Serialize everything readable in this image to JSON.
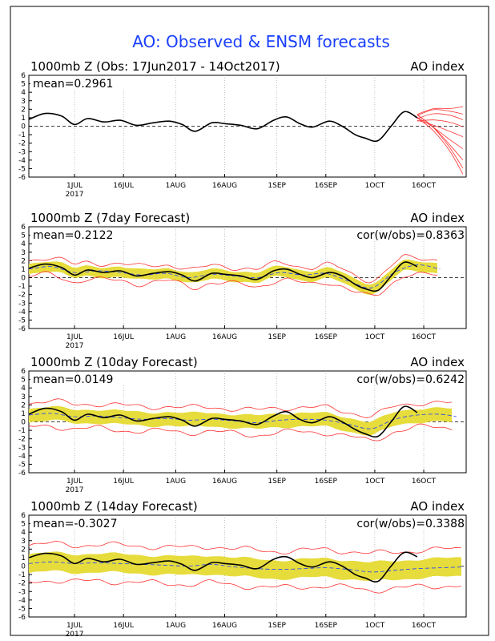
{
  "main_title": "AO: Observed & ENSM forecasts",
  "colors": {
    "title": "#1a3fff",
    "observed": "#000000",
    "forecast_members": "#ff3333",
    "ensemble_spread": "#e6dc3c",
    "ensemble_mean": "#1a3fff",
    "grid": "#999999"
  },
  "chart_data": [
    {
      "type": "line",
      "title_left": "1000mb Z (Obs: 17Jun2017 - 14Oct2017)",
      "title_right": "AO index",
      "stat_left": "mean=0.2961",
      "stat_right": "",
      "y_ticks": [
        "-6",
        "-5",
        "-4",
        "-3",
        "-2",
        "-1",
        "0",
        "1",
        "2",
        "3",
        "4",
        "5",
        "6"
      ],
      "ylim": [
        -6,
        6
      ],
      "x_ticks": [
        "1JUL",
        "16JUL",
        "1AUG",
        "16AUG",
        "1SEP",
        "16SEP",
        "1OCT",
        "16OCT"
      ],
      "x_year": "2017",
      "series": [
        {
          "role": "observed",
          "x": [
            "2017-06-17",
            "2017-06-22",
            "2017-06-27",
            "2017-07-01",
            "2017-07-05",
            "2017-07-10",
            "2017-07-15",
            "2017-07-20",
            "2017-07-25",
            "2017-07-30",
            "2017-08-03",
            "2017-08-07",
            "2017-08-12",
            "2017-08-16",
            "2017-08-21",
            "2017-08-26",
            "2017-08-31",
            "2017-09-04",
            "2017-09-08",
            "2017-09-12",
            "2017-09-17",
            "2017-09-21",
            "2017-09-25",
            "2017-09-28",
            "2017-10-02",
            "2017-10-06",
            "2017-10-10",
            "2017-10-14"
          ],
          "values": [
            0.8,
            1.5,
            1.2,
            0.2,
            0.9,
            0.5,
            0.7,
            0.1,
            0.4,
            0.6,
            0.2,
            -0.6,
            0.4,
            0.3,
            0.1,
            -0.3,
            0.7,
            1.1,
            0.3,
            -0.1,
            0.6,
            0.0,
            -1.0,
            -1.4,
            -1.7,
            0.0,
            1.7,
            1.0
          ]
        },
        {
          "role": "forecast_members",
          "x": [
            "2017-10-14",
            "2017-10-19",
            "2017-10-24",
            "2017-10-28"
          ],
          "values": [
            1.0,
            0.5,
            -0.5,
            -1.5
          ]
        }
      ]
    },
    {
      "type": "line",
      "title_left": "1000mb Z (7day Forecast)",
      "title_right": "AO index",
      "stat_left": "mean=0.2122",
      "stat_right": "cor(w/obs)=0.8363",
      "y_ticks": [
        "-6",
        "-5",
        "-4",
        "-3",
        "-2",
        "-1",
        "0",
        "1",
        "2",
        "3",
        "4",
        "5",
        "6"
      ],
      "ylim": [
        -6,
        6
      ],
      "x_ticks": [
        "1JUL",
        "16JUL",
        "1AUG",
        "16AUG",
        "1SEP",
        "16SEP",
        "1OCT",
        "16OCT"
      ],
      "x_year": "2017",
      "series": [
        {
          "role": "observed",
          "x": [
            "2017-06-17",
            "2017-06-22",
            "2017-06-27",
            "2017-07-01",
            "2017-07-05",
            "2017-07-10",
            "2017-07-15",
            "2017-07-20",
            "2017-07-25",
            "2017-07-30",
            "2017-08-03",
            "2017-08-07",
            "2017-08-12",
            "2017-08-16",
            "2017-08-21",
            "2017-08-26",
            "2017-08-31",
            "2017-09-04",
            "2017-09-08",
            "2017-09-12",
            "2017-09-17",
            "2017-09-21",
            "2017-09-25",
            "2017-09-28",
            "2017-10-02",
            "2017-10-06",
            "2017-10-10",
            "2017-10-14"
          ],
          "values": [
            1.1,
            1.6,
            1.2,
            0.3,
            0.9,
            0.6,
            0.8,
            0.2,
            0.5,
            0.7,
            0.3,
            -0.4,
            0.5,
            0.4,
            0.2,
            -0.2,
            0.8,
            1.0,
            0.4,
            0.0,
            0.6,
            0.2,
            -0.8,
            -1.3,
            -1.5,
            0.2,
            1.8,
            1.3
          ]
        },
        {
          "role": "ensemble_mean",
          "x": [
            "2017-06-17",
            "2017-06-24",
            "2017-07-01",
            "2017-07-08",
            "2017-07-15",
            "2017-07-22",
            "2017-07-29",
            "2017-08-05",
            "2017-08-12",
            "2017-08-19",
            "2017-08-26",
            "2017-09-02",
            "2017-09-09",
            "2017-09-16",
            "2017-09-23",
            "2017-09-30",
            "2017-10-07",
            "2017-10-14",
            "2017-10-21"
          ],
          "values": [
            1.0,
            1.3,
            0.6,
            0.8,
            0.6,
            0.3,
            0.5,
            0.0,
            0.4,
            0.2,
            0.0,
            0.6,
            0.3,
            0.5,
            -0.4,
            -1.2,
            0.6,
            1.5,
            1.0
          ]
        }
      ]
    },
    {
      "type": "line",
      "title_left": "1000mb Z (10day Forecast)",
      "title_right": "AO index",
      "stat_left": "mean=0.0149",
      "stat_right": "cor(w/obs)=0.6242",
      "y_ticks": [
        "-6",
        "-5",
        "-4",
        "-3",
        "-2",
        "-1",
        "0",
        "1",
        "2",
        "3",
        "4",
        "5",
        "6"
      ],
      "ylim": [
        -6,
        6
      ],
      "x_ticks": [
        "1JUL",
        "16JUL",
        "1AUG",
        "16AUG",
        "1SEP",
        "16SEP",
        "1OCT",
        "16OCT"
      ],
      "x_year": "2017",
      "series": [
        {
          "role": "observed",
          "x": [
            "2017-06-17",
            "2017-06-22",
            "2017-06-27",
            "2017-07-01",
            "2017-07-05",
            "2017-07-10",
            "2017-07-15",
            "2017-07-20",
            "2017-07-25",
            "2017-07-30",
            "2017-08-03",
            "2017-08-07",
            "2017-08-12",
            "2017-08-16",
            "2017-08-21",
            "2017-08-26",
            "2017-08-31",
            "2017-09-04",
            "2017-09-08",
            "2017-09-12",
            "2017-09-17",
            "2017-09-21",
            "2017-09-25",
            "2017-09-28",
            "2017-10-02",
            "2017-10-06",
            "2017-10-10",
            "2017-10-14"
          ],
          "values": [
            0.9,
            1.6,
            1.2,
            0.2,
            0.9,
            0.5,
            0.8,
            0.1,
            0.4,
            0.6,
            0.2,
            -0.5,
            0.4,
            0.3,
            0.1,
            -0.3,
            0.7,
            1.2,
            0.3,
            -0.1,
            0.6,
            0.0,
            -0.9,
            -1.4,
            -1.7,
            0.0,
            1.8,
            1.1
          ]
        },
        {
          "role": "ensemble_mean",
          "x": [
            "2017-06-17",
            "2017-06-24",
            "2017-07-01",
            "2017-07-08",
            "2017-07-15",
            "2017-07-22",
            "2017-07-29",
            "2017-08-05",
            "2017-08-12",
            "2017-08-19",
            "2017-08-26",
            "2017-09-02",
            "2017-09-09",
            "2017-09-16",
            "2017-09-23",
            "2017-09-30",
            "2017-10-07",
            "2017-10-14",
            "2017-10-21",
            "2017-10-26"
          ],
          "values": [
            0.8,
            1.0,
            0.6,
            0.7,
            0.5,
            0.3,
            0.4,
            0.2,
            0.3,
            0.1,
            -0.1,
            0.2,
            0.3,
            0.2,
            -0.3,
            -0.8,
            0.3,
            0.8,
            0.9,
            0.6
          ]
        }
      ]
    },
    {
      "type": "line",
      "title_left": "1000mb Z (14day Forecast)",
      "title_right": "AO index",
      "stat_left": "mean=-0.3027",
      "stat_right": "cor(w/obs)=0.3388",
      "y_ticks": [
        "-6",
        "-5",
        "-4",
        "-3",
        "-2",
        "-1",
        "0",
        "1",
        "2",
        "3",
        "4",
        "5",
        "6"
      ],
      "ylim": [
        -6,
        6
      ],
      "x_ticks": [
        "1JUL",
        "16JUL",
        "1AUG",
        "16AUG",
        "1SEP",
        "16SEP",
        "1OCT",
        "16OCT"
      ],
      "x_year": "2017",
      "series": [
        {
          "role": "observed",
          "x": [
            "2017-06-17",
            "2017-06-22",
            "2017-06-27",
            "2017-07-01",
            "2017-07-05",
            "2017-07-10",
            "2017-07-15",
            "2017-07-20",
            "2017-07-25",
            "2017-07-30",
            "2017-08-03",
            "2017-08-07",
            "2017-08-12",
            "2017-08-16",
            "2017-08-21",
            "2017-08-26",
            "2017-08-31",
            "2017-09-04",
            "2017-09-08",
            "2017-09-12",
            "2017-09-17",
            "2017-09-21",
            "2017-09-25",
            "2017-09-28",
            "2017-10-02",
            "2017-10-06",
            "2017-10-10",
            "2017-10-14"
          ],
          "values": [
            1.0,
            1.5,
            1.2,
            0.3,
            0.9,
            0.5,
            0.8,
            0.2,
            0.4,
            0.6,
            0.2,
            -0.5,
            0.4,
            0.3,
            0.1,
            -0.3,
            0.8,
            1.1,
            0.3,
            -0.1,
            0.5,
            0.0,
            -1.0,
            -1.4,
            -1.8,
            0.0,
            1.6,
            1.1
          ]
        },
        {
          "role": "ensemble_mean",
          "x": [
            "2017-06-17",
            "2017-06-24",
            "2017-07-01",
            "2017-07-08",
            "2017-07-15",
            "2017-07-22",
            "2017-07-29",
            "2017-08-05",
            "2017-08-12",
            "2017-08-19",
            "2017-08-26",
            "2017-09-02",
            "2017-09-09",
            "2017-09-16",
            "2017-09-23",
            "2017-09-30",
            "2017-10-07",
            "2017-10-14",
            "2017-10-21",
            "2017-10-28"
          ],
          "values": [
            0.3,
            0.5,
            0.3,
            0.4,
            0.3,
            0.2,
            0.1,
            0.0,
            0.2,
            -0.1,
            -0.3,
            -0.4,
            -0.3,
            -0.2,
            -0.4,
            -0.7,
            -0.5,
            -0.3,
            -0.2,
            -0.1
          ]
        }
      ]
    }
  ]
}
